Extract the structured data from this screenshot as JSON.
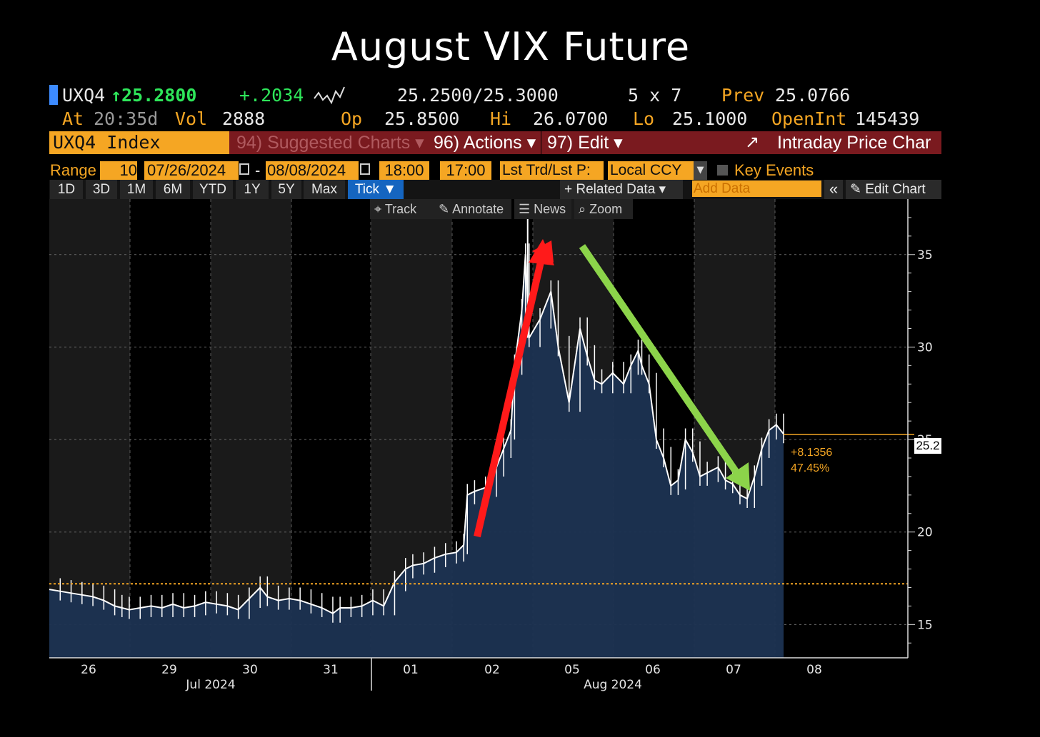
{
  "title": "August VIX Future",
  "quote": {
    "ticker": "UXQ4",
    "last": "↑25.2800",
    "change": "+.2034",
    "bid_ask": "25.2500/25.3000",
    "size": "5 x 7",
    "prev_label": "Prev",
    "prev": "25.0766",
    "at_label": "At",
    "at": "20:35d",
    "vol_label": "Vol",
    "vol": "2888",
    "op_label": "Op",
    "op": "25.8500",
    "hi_label": "Hi",
    "hi": "26.0700",
    "lo_label": "Lo",
    "lo": "25.1000",
    "oi_label": "OpenInt",
    "oi": "145439"
  },
  "toolbar": {
    "security": "UXQ4 Index",
    "suggested": "94) Suggested Charts ▾",
    "actions": "96) Actions ▾",
    "edit": "97) Edit ▾",
    "intraday": "Intraday Price Char"
  },
  "range": {
    "label": "Range",
    "count": "10",
    "start": "07/26/2024",
    "dash": "-",
    "end": "08/08/2024",
    "time_start": "18:00",
    "time_end": "17:00",
    "mode": "Lst Trd/Lst P:",
    "ccy": "Local CCY",
    "key_events": "Key Events"
  },
  "periods": [
    "1D",
    "3D",
    "1M",
    "6M",
    "YTD",
    "1Y",
    "5Y",
    "Max",
    "Tick ▼"
  ],
  "related": "+ Related Data ▾",
  "add_data_placeholder": "Add Data",
  "edit_chart": "Edit Chart",
  "chart_tools": [
    "Track",
    "Annotate",
    "News",
    "Zoom"
  ],
  "colors": {
    "area": "#1c3352",
    "line": "#ffffff",
    "up_arrow": "#ff1a1a",
    "down_arrow": "#8cd44a",
    "ref": "#f5a623"
  },
  "chart_data": {
    "type": "line",
    "x_days": [
      "26",
      "29",
      "30",
      "31",
      "01",
      "02",
      "05",
      "06",
      "07",
      "08"
    ],
    "months": [
      "Jul 2024",
      "Aug 2024"
    ],
    "y_ticks": [
      15,
      20,
      25,
      30,
      35
    ],
    "ylim": [
      13.2,
      38
    ],
    "last_price_tag": "25.2",
    "change_abs": "+8.1356",
    "change_pct": "47.45%",
    "reference_level": 17.2,
    "series": [
      {
        "values": [
          [
            0,
            16.9
          ],
          [
            0.15,
            16.8
          ],
          [
            0.3,
            16.7
          ],
          [
            0.45,
            16.6
          ],
          [
            0.6,
            16.5
          ],
          [
            0.75,
            16.3
          ],
          [
            0.9,
            16.0
          ],
          [
            1.0,
            15.9
          ],
          [
            1.1,
            15.8
          ],
          [
            1.25,
            15.9
          ],
          [
            1.4,
            16.0
          ],
          [
            1.55,
            15.9
          ],
          [
            1.7,
            16.1
          ],
          [
            1.85,
            15.9
          ],
          [
            2.0,
            16.0
          ],
          [
            2.15,
            16.2
          ],
          [
            2.3,
            16.1
          ],
          [
            2.45,
            16.0
          ],
          [
            2.6,
            15.8
          ],
          [
            2.75,
            16.4
          ],
          [
            2.9,
            17.0
          ],
          [
            3.0,
            16.5
          ],
          [
            3.15,
            16.3
          ],
          [
            3.3,
            16.4
          ],
          [
            3.45,
            16.3
          ],
          [
            3.6,
            16.1
          ],
          [
            3.75,
            15.9
          ],
          [
            3.9,
            15.6
          ],
          [
            4.0,
            15.9
          ],
          [
            4.15,
            15.9
          ],
          [
            4.3,
            16.0
          ],
          [
            4.45,
            16.3
          ],
          [
            4.6,
            16.0
          ],
          [
            4.75,
            17.3
          ],
          [
            4.9,
            18.0
          ],
          [
            5.0,
            18.2
          ],
          [
            5.15,
            18.3
          ],
          [
            5.3,
            18.6
          ],
          [
            5.45,
            18.8
          ],
          [
            5.6,
            18.9
          ],
          [
            5.7,
            19.3
          ],
          [
            5.75,
            22.0
          ],
          [
            5.85,
            22.2
          ],
          [
            6.0,
            22.4
          ],
          [
            6.15,
            23.5
          ],
          [
            6.25,
            24.5
          ],
          [
            6.35,
            25.5
          ],
          [
            6.4,
            29.0
          ],
          [
            6.5,
            32.0
          ],
          [
            6.55,
            35.0
          ],
          [
            6.6,
            30.5
          ],
          [
            6.75,
            31.5
          ],
          [
            6.9,
            33.0
          ],
          [
            7.0,
            30.0
          ],
          [
            7.15,
            27.0
          ],
          [
            7.3,
            31.0
          ],
          [
            7.4,
            29.5
          ],
          [
            7.5,
            28.2
          ],
          [
            7.6,
            28.0
          ],
          [
            7.75,
            28.6
          ],
          [
            7.9,
            28.0
          ],
          [
            8.0,
            29.0
          ],
          [
            8.1,
            29.8
          ],
          [
            8.15,
            29.0
          ],
          [
            8.25,
            28.0
          ],
          [
            8.35,
            25.0
          ],
          [
            8.45,
            24.0
          ],
          [
            8.55,
            22.5
          ],
          [
            8.65,
            22.8
          ],
          [
            8.75,
            25.0
          ],
          [
            8.85,
            24.3
          ],
          [
            8.95,
            23.0
          ],
          [
            9.05,
            23.2
          ],
          [
            9.2,
            23.5
          ],
          [
            9.3,
            22.8
          ],
          [
            9.4,
            22.6
          ],
          [
            9.5,
            22.0
          ],
          [
            9.6,
            21.8
          ],
          [
            9.7,
            23.0
          ],
          [
            9.8,
            24.5
          ],
          [
            9.9,
            25.5
          ],
          [
            10.0,
            25.8
          ],
          [
            10.1,
            25.3
          ]
        ]
      }
    ]
  }
}
